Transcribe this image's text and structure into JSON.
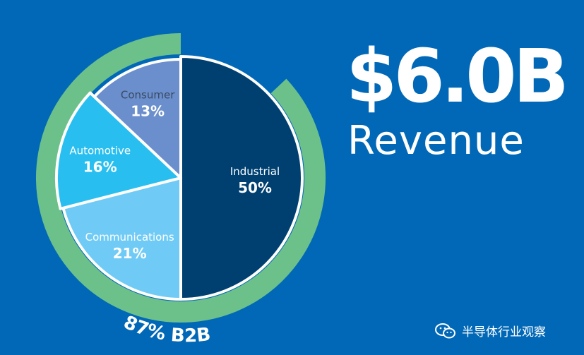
{
  "headline": {
    "amount": "$6.0B",
    "label": "Revenue"
  },
  "ring": {
    "label": "87% B2B",
    "share": 87
  },
  "watermark": {
    "text": "半导体行业观察",
    "icon": "wechat-icon"
  },
  "colors": {
    "background": "#0168b7",
    "ring": "#6cc18b",
    "industrial": "#004071",
    "communications": "#6fcbf5",
    "automotive": "#28bff0",
    "consumer": "#6b8fcc"
  },
  "chart_data": {
    "type": "pie",
    "categories": [
      "Industrial",
      "Communications",
      "Automotive",
      "Consumer"
    ],
    "values": [
      50,
      21,
      16,
      13
    ],
    "labels": [
      "50%",
      "21%",
      "16%",
      "13%"
    ],
    "title": ""
  }
}
